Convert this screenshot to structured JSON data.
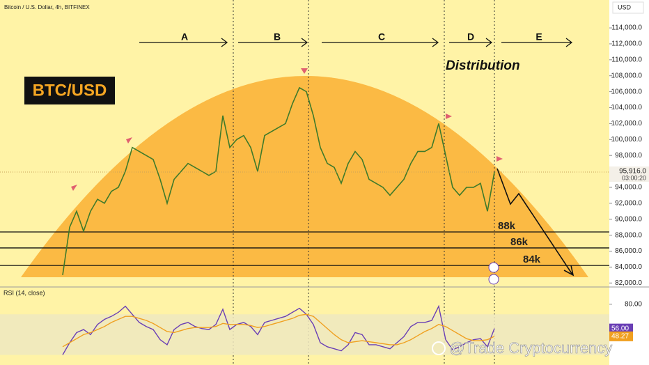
{
  "header": {
    "symbol": "Bitcoin / U.S. Dollar, 4h, BITFINEX",
    "currency": "USD"
  },
  "badge": "BTC/USD",
  "pattern_label": "Distribution",
  "sections": [
    "A",
    "B",
    "C",
    "D",
    "E"
  ],
  "watermark": "@Trade Cryptocurrency",
  "chart_data": [
    {
      "type": "line",
      "series": [
        {
          "name": "BTC/USD",
          "color": "#3f7a2a",
          "values": [
            83000,
            89000,
            91000,
            88500,
            91000,
            92500,
            92000,
            93500,
            94000,
            96000,
            99000,
            98500,
            98000,
            97500,
            95000,
            92000,
            95000,
            96000,
            97000,
            96500,
            96000,
            95500,
            96000,
            103000,
            99000,
            100000,
            100500,
            99000,
            96000,
            100500,
            101000,
            101500,
            102000,
            104500,
            106500,
            106000,
            103000,
            99000,
            97000,
            96500,
            94500,
            97000,
            98500,
            97500,
            95000,
            94500,
            94000,
            93000,
            94000,
            95000,
            97000,
            98500,
            98500,
            99000,
            102000,
            98000,
            94000,
            93000,
            94000,
            94000,
            94500,
            91000,
            95916
          ]
        }
      ],
      "last_price": {
        "value": 95916,
        "label": "95,916.0"
      },
      "countdown": "03:00:20",
      "levels": [
        {
          "value": 88400,
          "label": "88k"
        },
        {
          "value": 86400,
          "label": "86k"
        },
        {
          "value": 84200,
          "label": "84k"
        }
      ],
      "ylim": [
        81500,
        117500
      ],
      "yticks": [
        {
          "value": 82000,
          "label": "82,000.0"
        },
        {
          "value": 84000,
          "label": "84,000.0"
        },
        {
          "value": 86000,
          "label": "86,000.0"
        },
        {
          "value": 88000,
          "label": "88,000.0"
        },
        {
          "value": 90000,
          "label": "90,000.0"
        },
        {
          "value": 92000,
          "label": "92,000.0"
        },
        {
          "value": 94000,
          "label": "94,000.0"
        },
        {
          "value": 96000,
          "label": "96,000.0"
        },
        {
          "value": 98000,
          "label": "98,000.0"
        },
        {
          "value": 100000,
          "label": "100,000.0"
        },
        {
          "value": 102000,
          "label": "102,000.0"
        },
        {
          "value": 104000,
          "label": "104,000.0"
        },
        {
          "value": 106000,
          "label": "106,000.0"
        },
        {
          "value": 108000,
          "label": "108,000.0"
        },
        {
          "value": 110000,
          "label": "110,000.0"
        },
        {
          "value": 112000,
          "label": "112,000.0"
        },
        {
          "value": 114000,
          "label": "114,000.0"
        }
      ]
    },
    {
      "type": "line",
      "title": "RSI (14, close)",
      "series": [
        {
          "name": "RSI",
          "color": "#6a3fb5",
          "last_label": "56.00",
          "values": [
            30,
            42,
            52,
            55,
            50,
            60,
            65,
            68,
            72,
            78,
            70,
            62,
            58,
            55,
            45,
            40,
            55,
            60,
            62,
            58,
            56,
            55,
            60,
            75,
            55,
            60,
            62,
            58,
            50,
            62,
            64,
            66,
            68,
            72,
            76,
            70,
            60,
            42,
            38,
            36,
            34,
            40,
            52,
            50,
            40,
            40,
            38,
            36,
            42,
            48,
            58,
            62,
            62,
            64,
            78,
            45,
            35,
            38,
            42,
            45,
            46,
            38,
            56
          ]
        },
        {
          "name": "RSI-based MA",
          "color": "#f0a020",
          "last_label": "48.27",
          "values": [
            38,
            42,
            46,
            50,
            52,
            55,
            58,
            62,
            65,
            68,
            68,
            66,
            64,
            61,
            57,
            53,
            52,
            54,
            56,
            57,
            57,
            57,
            58,
            61,
            60,
            60,
            60,
            59,
            57,
            58,
            60,
            62,
            64,
            66,
            69,
            70,
            68,
            62,
            56,
            50,
            45,
            42,
            43,
            44,
            43,
            42,
            41,
            40,
            40,
            42,
            45,
            49,
            53,
            56,
            60,
            58,
            54,
            50,
            46,
            44,
            44,
            45,
            48.27
          ]
        }
      ],
      "band": [
        30,
        70
      ],
      "ylim": [
        20,
        97
      ],
      "yticks": [
        {
          "value": 80,
          "label": "80.00"
        }
      ]
    }
  ]
}
